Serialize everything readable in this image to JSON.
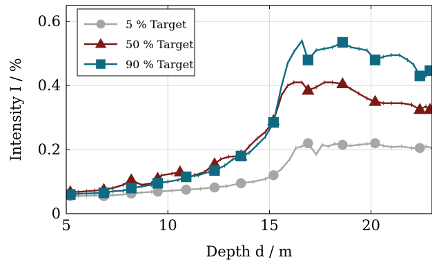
{
  "chart_data": {
    "type": "line",
    "xlabel": "Depth d / m",
    "ylabel": "Intensity I / %",
    "xlim": [
      5,
      23
    ],
    "ylim": [
      0,
      0.65
    ],
    "xticks": [
      5,
      10,
      15,
      20
    ],
    "yticks": [
      0,
      0.2,
      0.4,
      0.6
    ],
    "ytick_labels": [
      "0",
      "0.2",
      "0.4",
      "0.6"
    ],
    "grid": true,
    "legend_position": "top-left",
    "series": [
      {
        "name": "5 % Target",
        "color": "#a6a6a6",
        "marker": "circle",
        "x": [
          5.2,
          5.6,
          6.0,
          6.4,
          6.85,
          7.3,
          7.8,
          8.2,
          8.7,
          9.2,
          9.7,
          10.2,
          10.9,
          11.6,
          12.3,
          12.9,
          13.6,
          14.2,
          14.8,
          15.2,
          15.6,
          16.0,
          16.3,
          16.6,
          16.9,
          17.3,
          17.6,
          17.9,
          18.2,
          18.6,
          19.0,
          19.4,
          19.8,
          20.2,
          20.6,
          21.0,
          21.5,
          22.0,
          22.4,
          22.7,
          23.0
        ],
        "y": [
          0.055,
          0.055,
          0.056,
          0.057,
          0.055,
          0.058,
          0.06,
          0.063,
          0.066,
          0.068,
          0.07,
          0.072,
          0.075,
          0.078,
          0.082,
          0.086,
          0.095,
          0.1,
          0.108,
          0.12,
          0.14,
          0.17,
          0.205,
          0.21,
          0.22,
          0.185,
          0.215,
          0.21,
          0.218,
          0.215,
          0.212,
          0.215,
          0.218,
          0.22,
          0.212,
          0.208,
          0.21,
          0.205,
          0.205,
          0.21,
          0.205
        ],
        "marker_x": [
          5.2,
          6.85,
          8.2,
          9.5,
          10.9,
          12.3,
          13.6,
          15.2,
          16.9,
          18.6,
          20.2,
          22.4
        ]
      },
      {
        "name": "50 % Target",
        "color": "#7b1a14",
        "marker": "triangle",
        "x": [
          5.2,
          5.6,
          6.0,
          6.4,
          6.85,
          7.3,
          7.8,
          8.2,
          8.7,
          9.2,
          9.7,
          10.2,
          10.6,
          10.9,
          11.3,
          11.8,
          12.3,
          12.6,
          13.0,
          13.6,
          14.0,
          14.4,
          14.8,
          15.2,
          15.6,
          15.9,
          16.2,
          16.6,
          16.9,
          17.3,
          17.7,
          18.1,
          18.6,
          19.0,
          19.4,
          19.8,
          20.2,
          20.6,
          21.0,
          21.5,
          22.0,
          22.4,
          22.7,
          23.0
        ],
        "y": [
          0.068,
          0.068,
          0.07,
          0.072,
          0.075,
          0.08,
          0.09,
          0.105,
          0.09,
          0.095,
          0.12,
          0.125,
          0.13,
          0.11,
          0.12,
          0.13,
          0.155,
          0.17,
          0.178,
          0.18,
          0.21,
          0.235,
          0.255,
          0.29,
          0.37,
          0.4,
          0.41,
          0.41,
          0.385,
          0.395,
          0.41,
          0.41,
          0.405,
          0.39,
          0.375,
          0.36,
          0.35,
          0.345,
          0.345,
          0.345,
          0.34,
          0.325,
          0.335,
          0.32
        ],
        "marker_x": [
          5.2,
          6.85,
          8.2,
          9.5,
          10.6,
          12.3,
          13.6,
          15.2,
          16.9,
          18.6,
          20.2,
          22.4,
          22.9
        ]
      },
      {
        "name": "90 % Target",
        "color": "#0e6a80",
        "marker": "square",
        "x": [
          5.2,
          5.6,
          6.0,
          6.4,
          6.85,
          7.3,
          7.8,
          8.2,
          8.7,
          9.2,
          9.5,
          10.0,
          10.5,
          10.9,
          11.5,
          12.0,
          12.3,
          12.8,
          13.2,
          13.6,
          14.0,
          14.4,
          14.8,
          15.2,
          15.6,
          15.9,
          16.2,
          16.6,
          16.9,
          17.3,
          17.7,
          18.1,
          18.6,
          19.0,
          19.4,
          19.8,
          20.2,
          20.6,
          21.0,
          21.4,
          21.8,
          22.1,
          22.4,
          22.7,
          23.0
        ],
        "y": [
          0.06,
          0.062,
          0.063,
          0.064,
          0.065,
          0.07,
          0.072,
          0.08,
          0.085,
          0.09,
          0.095,
          0.1,
          0.105,
          0.115,
          0.12,
          0.13,
          0.135,
          0.15,
          0.17,
          0.18,
          0.19,
          0.215,
          0.24,
          0.285,
          0.4,
          0.47,
          0.505,
          0.54,
          0.48,
          0.51,
          0.515,
          0.52,
          0.535,
          0.52,
          0.515,
          0.51,
          0.48,
          0.49,
          0.495,
          0.495,
          0.48,
          0.465,
          0.43,
          0.43,
          0.455
        ],
        "marker_x": [
          5.2,
          6.85,
          8.2,
          9.5,
          10.9,
          12.3,
          13.6,
          15.2,
          16.9,
          18.6,
          20.2,
          22.4,
          22.9
        ]
      }
    ]
  },
  "legend": {
    "items": [
      {
        "label": "5 % Target"
      },
      {
        "label": "50 % Target"
      },
      {
        "label": "90 % Target"
      }
    ]
  },
  "axes": {
    "xlabel": "Depth d / m",
    "ylabel": "Intensity I / %"
  }
}
